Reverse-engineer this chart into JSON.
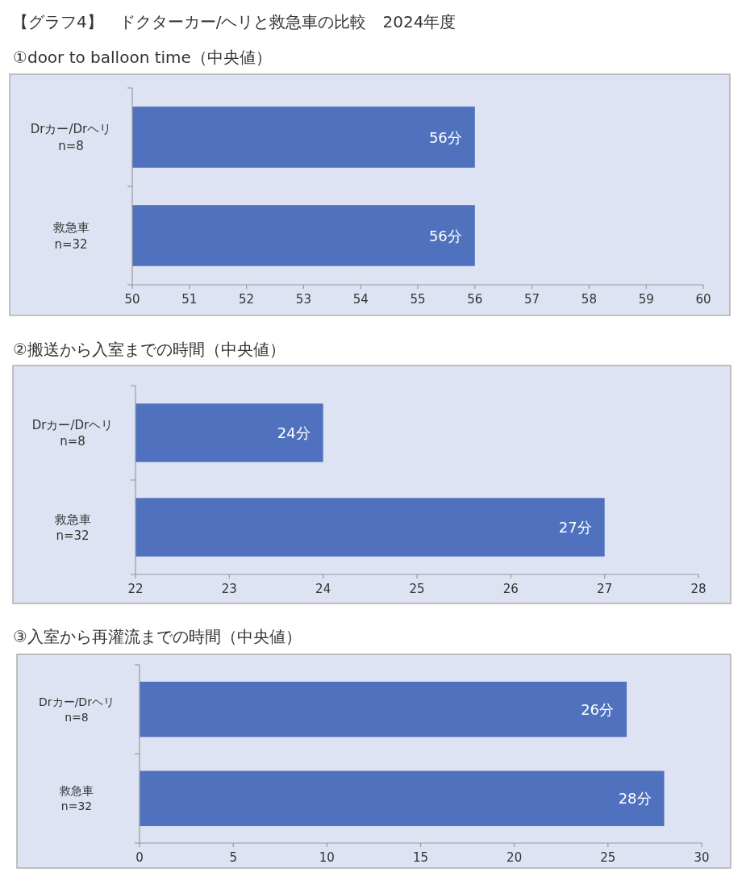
{
  "chart_data": [
    {
      "type": "bar",
      "orientation": "horizontal",
      "title": "【グラフ4】　ドクターカー/ヘリと救急車の比較　2024年度",
      "subtitle": "①door to balloon time（中央値）",
      "categories": [
        "Drカー/Drヘリ\nn=8",
        "救急車\nn=32"
      ],
      "values": [
        56,
        56
      ],
      "value_labels": [
        "56分",
        "56分"
      ],
      "color": "#4f71be",
      "xlim": [
        50,
        60
      ],
      "xticks": [
        50,
        51,
        52,
        53,
        54,
        55,
        56,
        57,
        58,
        59,
        60
      ]
    },
    {
      "type": "bar",
      "orientation": "horizontal",
      "title": "②搬送から入室までの時間（中央値）",
      "categories": [
        "Drカー/Drヘリ\nn=8",
        "救急車\nn=32"
      ],
      "values": [
        24,
        27
      ],
      "value_labels": [
        "24分",
        "27分"
      ],
      "color": "#4f71be",
      "xlim": [
        22,
        28
      ],
      "xticks": [
        22,
        23,
        24,
        25,
        26,
        27,
        28
      ]
    },
    {
      "type": "bar",
      "orientation": "horizontal",
      "title": "③入室から再灌流までの時間（中央値）",
      "categories": [
        "Drカー/Drヘリ\nn=8",
        "救急車\nn=32"
      ],
      "values": [
        26,
        28
      ],
      "value_labels": [
        "26分",
        "28分"
      ],
      "color": "#4f71be",
      "xlim": [
        0,
        30
      ],
      "xticks": [
        0,
        5,
        10,
        15,
        20,
        25,
        30
      ]
    }
  ]
}
